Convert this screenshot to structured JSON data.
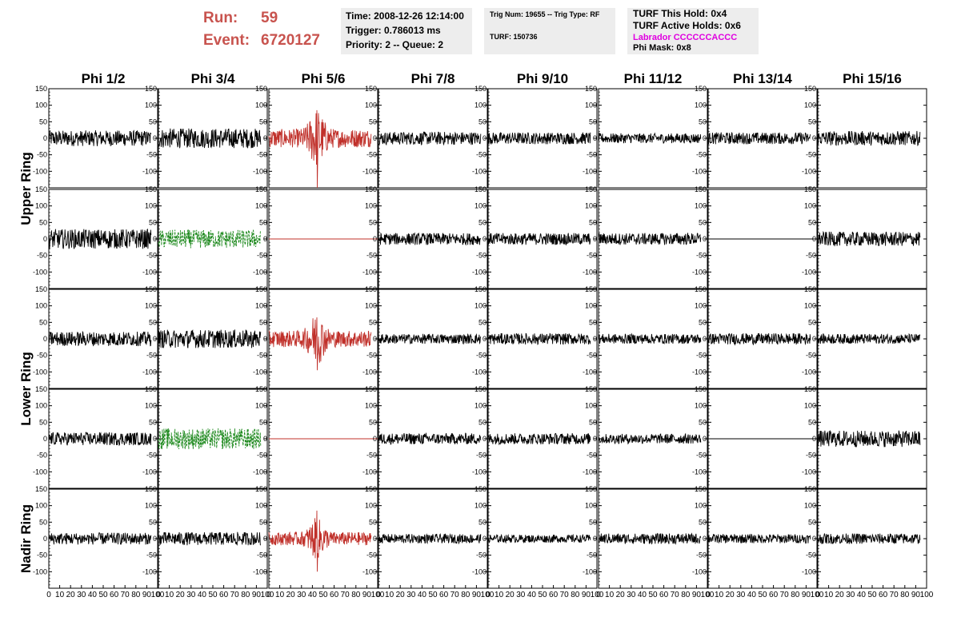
{
  "header": {
    "run_label": "Run:",
    "run_value": "59",
    "event_label": "Event:",
    "event_value": "6720127"
  },
  "info_boxes": {
    "time": "Time: 2008-12-26 12:14:00",
    "trigger": "Trigger: 0.786013 ms",
    "priority": "Priority: 2 -- Queue: 2",
    "trig_num": "Trig Num: 19655 -- Trig Type: RF",
    "turf": "TURF: 150736",
    "turf_this_hold": "TURF This Hold: 0x4",
    "turf_active_holds": "TURF Active Holds: 0x6",
    "labrador": "Labrador CCCCCCACCC",
    "phi_mask": "Phi Mask: 0x8"
  },
  "colors": {
    "header_red": "#c8534e",
    "info_bg": "#ededed",
    "labrador_magenta": "#e000e0",
    "trace_default": "#000000",
    "trace_red": "#c0302a",
    "trace_green": "#1f8a1f"
  },
  "chart_data": {
    "type": "line",
    "title": "",
    "columns": [
      "Phi 1/2",
      "Phi 3/4",
      "Phi 5/6",
      "Phi 7/8",
      "Phi 9/10",
      "Phi 11/12",
      "Phi 13/14",
      "Phi 15/16"
    ],
    "ring_labels": [
      {
        "label": "Upper Ring",
        "rows": [
          0,
          1
        ]
      },
      {
        "label": "Lower Ring",
        "rows": [
          2,
          3
        ]
      },
      {
        "label": "Nadir Ring",
        "rows": [
          4,
          4
        ]
      }
    ],
    "xlim": [
      0,
      100
    ],
    "ylim": [
      -150,
      150
    ],
    "y_ticks": [
      -100,
      -50,
      0,
      50,
      100,
      150
    ],
    "y_tick_labels": [
      "-100",
      "-50",
      "0",
      "50",
      "100",
      "150"
    ],
    "x_ticks": [
      0,
      10,
      20,
      30,
      40,
      50,
      60,
      70,
      80,
      90,
      100
    ],
    "x_tick_labels": [
      "0",
      "10",
      "20",
      "30",
      "40",
      "50",
      "60",
      "70",
      "80",
      "90",
      "100"
    ],
    "trace_x_end": 94,
    "grid": false,
    "rows": [
      [
        {
          "style": "noise",
          "amp": 24,
          "color": "black"
        },
        {
          "style": "noise",
          "amp": 30,
          "color": "black"
        },
        {
          "style": "pulse",
          "amp": 28,
          "peak": 85,
          "trough": -150,
          "center": 44,
          "color": "red"
        },
        {
          "style": "noise",
          "amp": 20,
          "color": "black"
        },
        {
          "style": "noise",
          "amp": 18,
          "color": "black"
        },
        {
          "style": "noise",
          "amp": 15,
          "color": "black"
        },
        {
          "style": "noise",
          "amp": 18,
          "color": "black"
        },
        {
          "style": "noise",
          "amp": 22,
          "color": "black"
        }
      ],
      [
        {
          "style": "noise",
          "amp": 30,
          "color": "black"
        },
        {
          "style": "dashed",
          "amp": 28,
          "color": "green"
        },
        {
          "style": "flat",
          "amp": 0,
          "color": "red"
        },
        {
          "style": "noise",
          "amp": 18,
          "color": "black"
        },
        {
          "style": "noise",
          "amp": 18,
          "color": "black"
        },
        {
          "style": "noise",
          "amp": 18,
          "color": "black"
        },
        {
          "style": "flat",
          "amp": 0,
          "color": "black"
        },
        {
          "style": "noise",
          "amp": 22,
          "color": "black"
        }
      ],
      [
        {
          "style": "noise",
          "amp": 22,
          "color": "black"
        },
        {
          "style": "noise",
          "amp": 28,
          "color": "black"
        },
        {
          "style": "pulse",
          "amp": 25,
          "peak": 65,
          "trough": -95,
          "center": 44,
          "color": "red"
        },
        {
          "style": "noise",
          "amp": 15,
          "color": "black"
        },
        {
          "style": "noise",
          "amp": 17,
          "color": "black"
        },
        {
          "style": "noise",
          "amp": 15,
          "color": "black"
        },
        {
          "style": "noise",
          "amp": 17,
          "color": "black"
        },
        {
          "style": "noise",
          "amp": 15,
          "color": "black"
        }
      ],
      [
        {
          "style": "noise",
          "amp": 20,
          "color": "black"
        },
        {
          "style": "dashed",
          "amp": 32,
          "color": "green"
        },
        {
          "style": "flat",
          "amp": 0,
          "color": "red"
        },
        {
          "style": "noise",
          "amp": 17,
          "color": "black"
        },
        {
          "style": "noise",
          "amp": 17,
          "color": "black"
        },
        {
          "style": "noise",
          "amp": 15,
          "color": "black"
        },
        {
          "style": "flat",
          "amp": 0,
          "color": "black"
        },
        {
          "style": "noise",
          "amp": 25,
          "color": "black"
        }
      ],
      [
        {
          "style": "noise",
          "amp": 18,
          "color": "black"
        },
        {
          "style": "noise",
          "amp": 20,
          "color": "black"
        },
        {
          "style": "pulse",
          "amp": 20,
          "peak": 85,
          "trough": -100,
          "center": 44,
          "color": "red"
        },
        {
          "style": "noise",
          "amp": 14,
          "color": "black"
        },
        {
          "style": "noise",
          "amp": 12,
          "color": "black"
        },
        {
          "style": "noise",
          "amp": 16,
          "color": "black"
        },
        {
          "style": "noise",
          "amp": 14,
          "color": "black"
        },
        {
          "style": "noise",
          "amp": 16,
          "color": "black"
        }
      ]
    ]
  }
}
